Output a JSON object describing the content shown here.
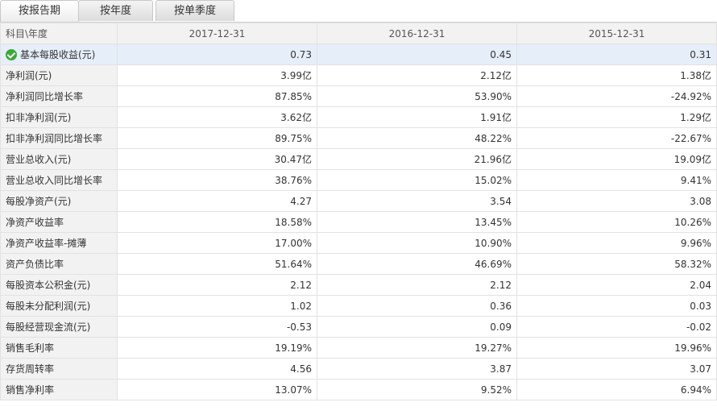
{
  "tabs": [
    {
      "label": "按报告期",
      "active": true
    },
    {
      "label": "按年度",
      "active": false
    },
    {
      "label": "按单季度",
      "active": false
    }
  ],
  "table": {
    "corner_header": "科目\\年度",
    "columns": [
      "2017-12-31",
      "2016-12-31",
      "2015-12-31"
    ],
    "rows": [
      {
        "label": "基本每股收益(元)",
        "values": [
          "0.73",
          "0.45",
          "0.31"
        ]
      },
      {
        "label": "净利润(元)",
        "values": [
          "3.99亿",
          "2.12亿",
          "1.38亿"
        ]
      },
      {
        "label": "净利润同比增长率",
        "values": [
          "87.85%",
          "53.90%",
          "-24.92%"
        ]
      },
      {
        "label": "扣非净利润(元)",
        "values": [
          "3.62亿",
          "1.91亿",
          "1.29亿"
        ]
      },
      {
        "label": "扣非净利润同比增长率",
        "values": [
          "89.75%",
          "48.22%",
          "-22.67%"
        ]
      },
      {
        "label": "营业总收入(元)",
        "values": [
          "30.47亿",
          "21.96亿",
          "19.09亿"
        ]
      },
      {
        "label": "营业总收入同比增长率",
        "values": [
          "38.76%",
          "15.02%",
          "9.41%"
        ]
      },
      {
        "label": "每股净资产(元)",
        "values": [
          "4.27",
          "3.54",
          "3.08"
        ]
      },
      {
        "label": "净资产收益率",
        "values": [
          "18.58%",
          "13.45%",
          "10.26%"
        ]
      },
      {
        "label": "净资产收益率-摊薄",
        "values": [
          "17.00%",
          "10.90%",
          "9.96%"
        ]
      },
      {
        "label": "资产负债比率",
        "values": [
          "51.64%",
          "46.69%",
          "58.32%"
        ]
      },
      {
        "label": "每股资本公积金(元)",
        "values": [
          "2.12",
          "2.12",
          "2.04"
        ]
      },
      {
        "label": "每股未分配利润(元)",
        "values": [
          "1.02",
          "0.36",
          "0.03"
        ]
      },
      {
        "label": "每股经营现金流(元)",
        "values": [
          "-0.53",
          "0.09",
          "-0.02"
        ]
      },
      {
        "label": "销售毛利率",
        "values": [
          "19.19%",
          "19.27%",
          "19.96%"
        ]
      },
      {
        "label": "存货周转率",
        "values": [
          "4.56",
          "3.87",
          "3.07"
        ]
      },
      {
        "label": "销售净利率",
        "values": [
          "13.07%",
          "9.52%",
          "6.94%"
        ]
      }
    ]
  },
  "icons": {
    "highlight_row_icon": "check-circle-icon"
  },
  "colors": {
    "check": "#3aaa35",
    "highlight_row": "#e6eef9",
    "label_bg": "#f2f2f2"
  }
}
